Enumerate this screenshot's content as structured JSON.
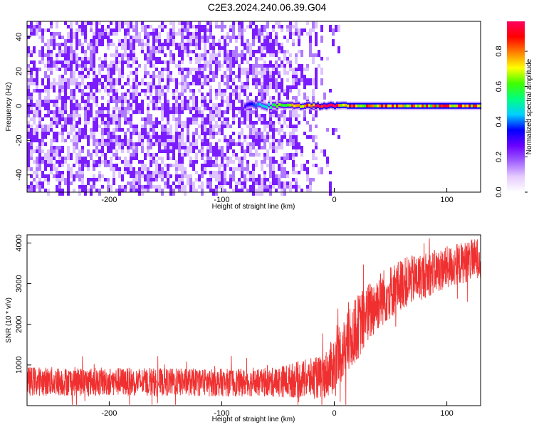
{
  "title": "C2E3.2024.240.06.39.G04",
  "chart_data": [
    {
      "type": "heatmap",
      "xlabel": "Height of straight line (km)",
      "ylabel": "Frequency (Hz)",
      "xlim": [
        -273,
        130
      ],
      "ylim": [
        -50,
        49
      ],
      "xticks": [
        -200,
        -100,
        0,
        100
      ],
      "yticks": [
        -40,
        -20,
        0,
        20,
        40
      ],
      "colorbar": {
        "label": "Normalized spectral amplitude",
        "range": [
          0,
          0.97
        ],
        "ticks": [
          0.0,
          0.2,
          0.4,
          0.6,
          0.8
        ],
        "colormap": [
          "#ffffff",
          "#e6ccff",
          "#a060ff",
          "#6a00ff",
          "#0000ff",
          "#00d0ff",
          "#00ff80",
          "#40ff00",
          "#ffff00",
          "#ff8000",
          "#ff0000",
          "#ff0060"
        ]
      },
      "features": {
        "noise_region_x": [
          -273,
          -15
        ],
        "noise_amplitude_max": 0.15,
        "signal_line_frequency": 0,
        "signal_start_x": -80,
        "signal_amplitude_range": [
          0.3,
          0.95
        ]
      }
    },
    {
      "type": "line",
      "xlabel": "Height of straight line (km)",
      "ylabel": "SNR (10 * v/v)",
      "xlim": [
        -273,
        130
      ],
      "ylim": [
        0,
        4200
      ],
      "xticks": [
        -200,
        -100,
        0,
        100
      ],
      "yticks": [
        1000,
        2000,
        3000,
        4000
      ],
      "color": "#f03030",
      "profile": [
        {
          "x": -273,
          "mean": 600,
          "spread": 400
        },
        {
          "x": -150,
          "mean": 580,
          "spread": 380
        },
        {
          "x": -60,
          "mean": 560,
          "spread": 380
        },
        {
          "x": -10,
          "mean": 700,
          "spread": 600
        },
        {
          "x": 0,
          "mean": 1000,
          "spread": 800
        },
        {
          "x": 20,
          "mean": 1900,
          "spread": 900
        },
        {
          "x": 40,
          "mean": 2600,
          "spread": 800
        },
        {
          "x": 60,
          "mean": 3000,
          "spread": 700
        },
        {
          "x": 90,
          "mean": 3300,
          "spread": 600
        },
        {
          "x": 130,
          "mean": 3650,
          "spread": 550
        }
      ]
    }
  ]
}
